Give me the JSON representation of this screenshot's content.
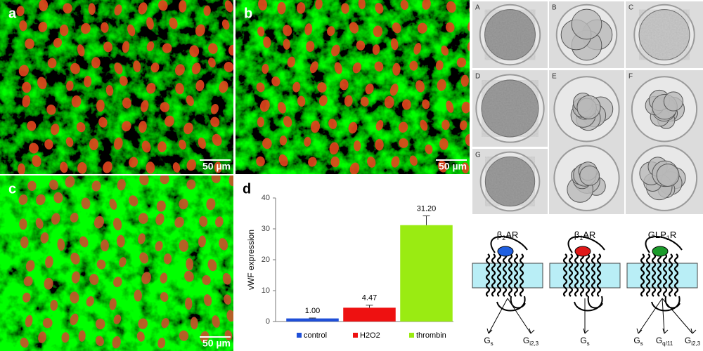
{
  "micrographs": [
    {
      "label": "a",
      "scale_bar": "50 µm"
    },
    {
      "label": "b",
      "scale_bar": "50 µm"
    },
    {
      "label": "c",
      "scale_bar": "50 µm"
    }
  ],
  "embryo_labels": [
    "A",
    "B",
    "C",
    "D",
    "E",
    "F",
    "G"
  ],
  "chart_data": {
    "type": "bar",
    "panel_label": "d",
    "y_label": "vWF expression",
    "categories": [
      "control",
      "H2O2",
      "thrombin"
    ],
    "values": [
      1.0,
      4.47,
      31.2
    ],
    "value_labels": [
      "1.00",
      "4.47",
      "31.20"
    ],
    "errors": [
      0.15,
      0.8,
      3.0
    ],
    "colors": [
      "#1f4fd8",
      "#ee1111",
      "#9aeb12"
    ],
    "ylim": [
      0,
      40
    ],
    "yticks": [
      0,
      10,
      20,
      30,
      40
    ],
    "grid": false
  },
  "receptors": [
    {
      "name": [
        "β",
        "2",
        "AR"
      ],
      "ligand_color": "#1f5fe0",
      "g_proteins": [
        [
          "G",
          "s"
        ],
        [
          "G",
          "i2,3"
        ]
      ]
    },
    {
      "name": [
        "β",
        "1",
        "AR"
      ],
      "ligand_color": "#e01818",
      "g_proteins": [
        [
          "G",
          "s"
        ]
      ]
    },
    {
      "name": [
        "GLP",
        "1",
        "R"
      ],
      "ligand_color": "#1a9a2a",
      "g_proteins": [
        [
          "G",
          "s"
        ],
        [
          "G",
          "q/11"
        ],
        [
          "G",
          "i2,3"
        ]
      ]
    }
  ]
}
